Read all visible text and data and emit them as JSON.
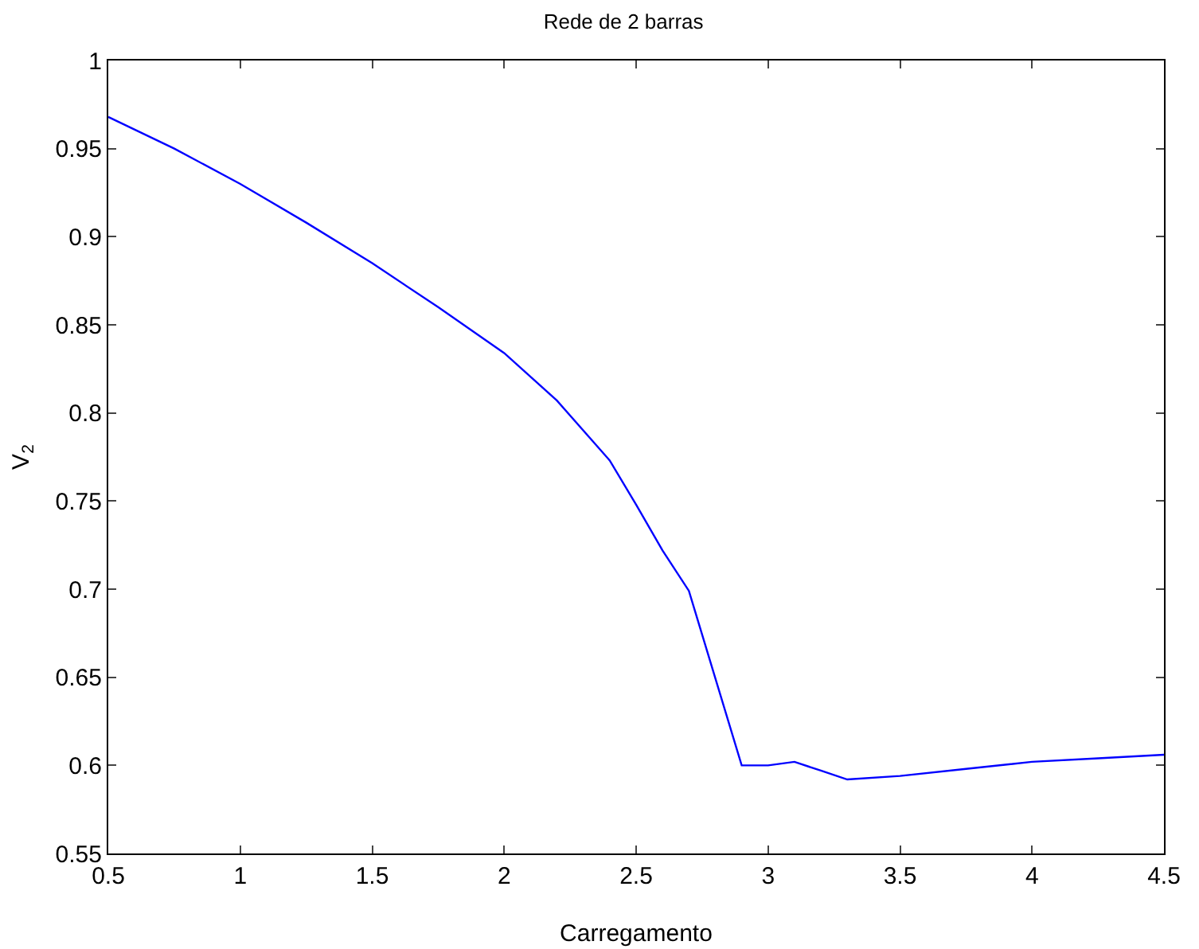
{
  "chart_data": {
    "type": "line",
    "title": "Rede de 2 barras",
    "xlabel": "Carregamento",
    "ylabel": "V$_{2}$",
    "x": [
      0.5,
      0.75,
      1,
      1.25,
      1.5,
      1.75,
      2,
      2.2,
      2.4,
      2.5,
      2.6,
      2.7,
      2.9,
      3.0,
      3.1,
      3.2,
      3.3,
      3.5,
      3.75,
      4,
      4.25,
      4.5
    ],
    "series": [
      {
        "color": "#0000ff",
        "values": [
          0.968,
          0.95,
          0.93,
          0.908,
          0.885,
          0.86,
          0.834,
          0.807,
          0.773,
          0.748,
          0.722,
          0.699,
          0.6,
          0.6,
          0.602,
          0.597,
          0.592,
          0.594,
          0.598,
          0.602,
          0.604,
          0.606
        ]
      }
    ],
    "xlim": [
      0.5,
      4.5
    ],
    "xticks": [
      0.5,
      1,
      1.5,
      2,
      2.5,
      3,
      3.5,
      4,
      4.5
    ],
    "ylim": [
      0.55,
      1
    ],
    "yticks": [
      0.55,
      0.6,
      0.65,
      0.7,
      0.75,
      0.8,
      0.85,
      0.9,
      0.95,
      1
    ],
    "grid": false,
    "marker": "none",
    "line_style": "solid"
  }
}
